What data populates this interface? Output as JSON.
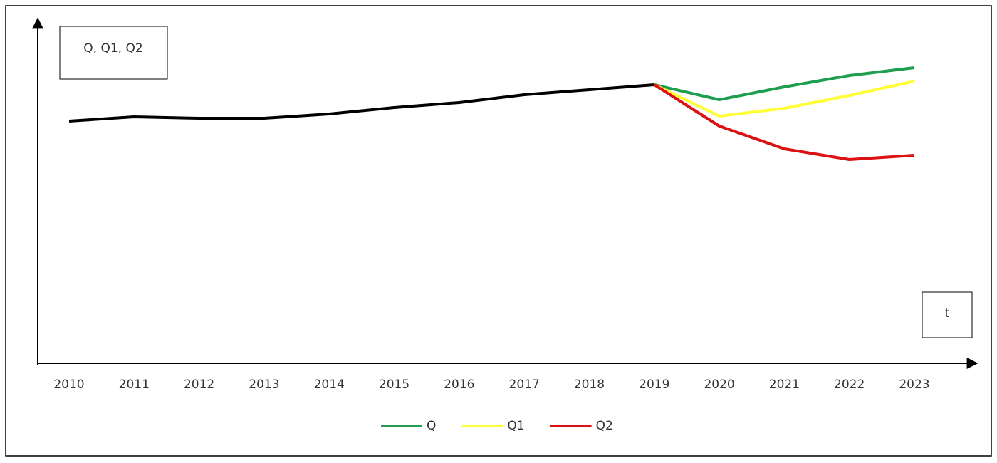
{
  "chart_data": {
    "type": "line",
    "y_label": "Q, Q1, Q2",
    "x_label": "t",
    "categories": [
      "2010",
      "2011",
      "2012",
      "2013",
      "2014",
      "2015",
      "2016",
      "2017",
      "2018",
      "2019",
      "2020",
      "2021",
      "2022",
      "2023"
    ],
    "series": [
      {
        "color": "#000000",
        "values": [
          340,
          346,
          344,
          344,
          350,
          359,
          366,
          377,
          384,
          391,
          null,
          null,
          null,
          null
        ]
      },
      {
        "name": "Q",
        "color": "#1e9e4e",
        "values": [
          null,
          null,
          null,
          null,
          null,
          null,
          null,
          null,
          null,
          391,
          370,
          388,
          404,
          415
        ]
      },
      {
        "name": "Q1",
        "color": "#ffff33",
        "values": [
          null,
          null,
          null,
          null,
          null,
          null,
          null,
          null,
          null,
          391,
          347,
          358,
          376,
          396
        ]
      },
      {
        "name": "Q2",
        "color": "#dd1111",
        "values": [
          null,
          null,
          null,
          null,
          null,
          null,
          null,
          null,
          null,
          391,
          333,
          301,
          286,
          292
        ]
      }
    ],
    "ylim": [
      0,
      480
    ]
  }
}
